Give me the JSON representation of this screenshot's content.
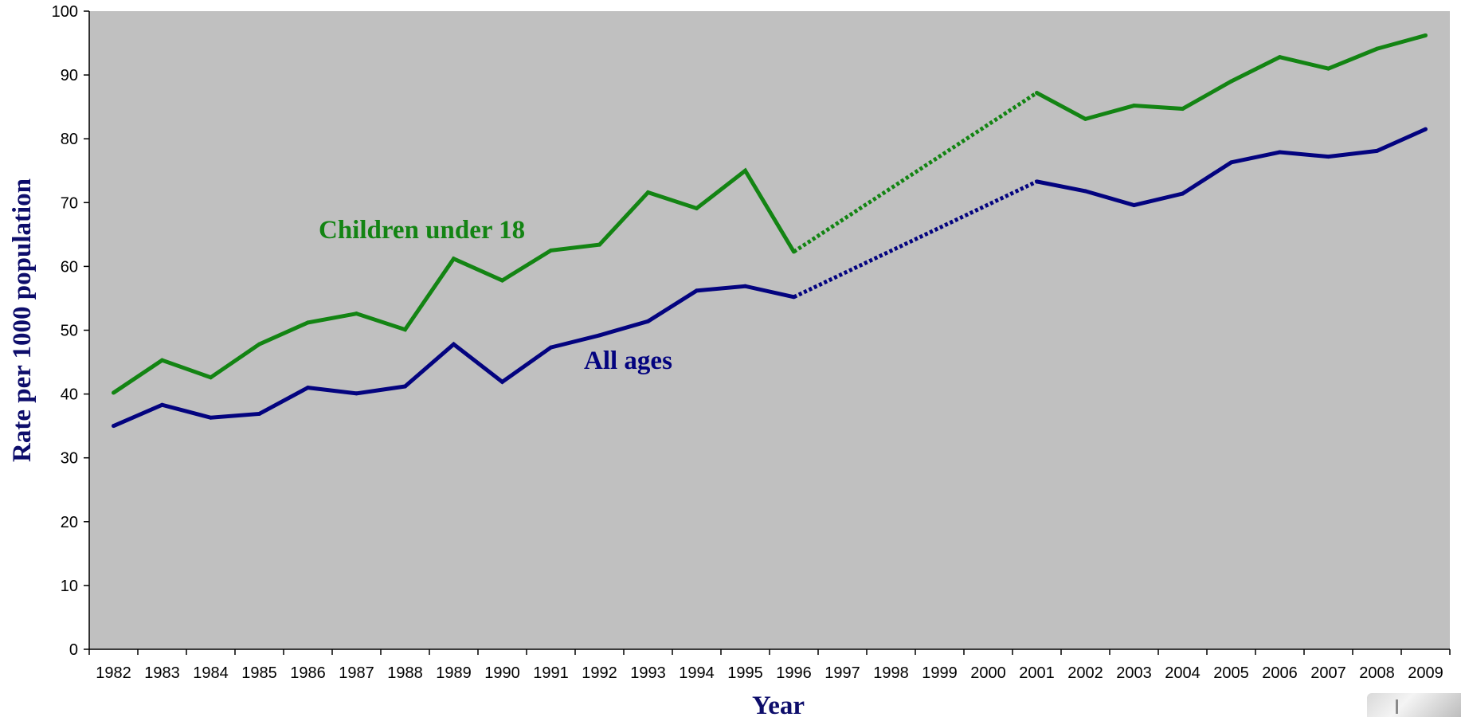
{
  "chart_data": {
    "type": "line",
    "xlabel": "Year",
    "ylabel": "Rate per 1000 population",
    "ylim": [
      0,
      100
    ],
    "yticks": [
      0,
      10,
      20,
      30,
      40,
      50,
      60,
      70,
      80,
      90,
      100
    ],
    "categories": [
      "1982",
      "1983",
      "1984",
      "1985",
      "1986",
      "1987",
      "1988",
      "1989",
      "1990",
      "1991",
      "1992",
      "1993",
      "1994",
      "1995",
      "1996",
      "1997",
      "1998",
      "1999",
      "2000",
      "2001",
      "2002",
      "2003",
      "2004",
      "2005",
      "2006",
      "2007",
      "2008",
      "2009"
    ],
    "plot_background": "#c0c0c0",
    "grid": false,
    "legend": "none (series labelled directly on plot)",
    "gap": {
      "from": "1996",
      "to": "2001",
      "style": "dotted"
    },
    "series": [
      {
        "name": "Children under 18",
        "color": "#138413",
        "values": [
          40.2,
          45.3,
          42.6,
          47.8,
          51.2,
          52.6,
          50.1,
          61.2,
          57.8,
          62.5,
          63.4,
          71.6,
          69.1,
          75.0,
          62.3,
          null,
          null,
          null,
          null,
          87.2,
          83.1,
          85.2,
          84.7,
          89.0,
          92.8,
          91.0,
          94.1,
          96.2
        ]
      },
      {
        "name": "All ages",
        "color": "#03037f",
        "values": [
          35.0,
          38.3,
          36.3,
          36.9,
          41.0,
          40.1,
          41.2,
          47.8,
          41.9,
          47.3,
          49.2,
          51.4,
          56.2,
          56.9,
          55.2,
          null,
          null,
          null,
          null,
          73.3,
          71.8,
          69.6,
          71.4,
          76.3,
          77.9,
          77.2,
          78.1,
          81.5
        ]
      }
    ]
  }
}
